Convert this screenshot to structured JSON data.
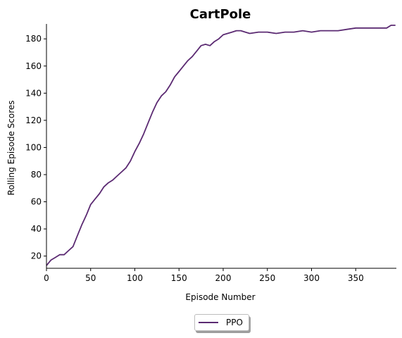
{
  "chart_data": {
    "type": "line",
    "title": "CartPole",
    "xlabel": "Episode Number",
    "ylabel": "Rolling Episode Scores",
    "xlim": [
      0,
      396
    ],
    "ylim": [
      11,
      191
    ],
    "xticks": [
      0,
      50,
      100,
      150,
      200,
      250,
      300,
      350
    ],
    "yticks": [
      20,
      40,
      60,
      80,
      100,
      120,
      140,
      160,
      180
    ],
    "grid": false,
    "legend_position": "below-center",
    "colors": {
      "ppo": "#5b2a72"
    },
    "series": [
      {
        "name": "PPO",
        "x": [
          0,
          5,
          10,
          15,
          20,
          25,
          30,
          35,
          40,
          45,
          50,
          55,
          60,
          65,
          70,
          75,
          80,
          85,
          90,
          95,
          100,
          105,
          110,
          115,
          120,
          125,
          130,
          135,
          140,
          145,
          150,
          155,
          160,
          165,
          170,
          175,
          180,
          185,
          190,
          195,
          200,
          205,
          210,
          215,
          220,
          225,
          230,
          240,
          250,
          260,
          270,
          280,
          290,
          300,
          310,
          320,
          330,
          340,
          350,
          360,
          370,
          380,
          385,
          390,
          395
        ],
        "y": [
          13,
          17,
          19,
          21,
          21,
          24,
          27,
          35,
          43,
          50,
          58,
          62,
          66,
          71,
          74,
          76,
          79,
          82,
          85,
          90,
          97,
          103,
          110,
          118,
          126,
          133,
          138,
          141,
          146,
          152,
          156,
          160,
          164,
          167,
          171,
          175,
          176,
          175,
          178,
          180,
          183,
          184,
          185,
          186,
          186,
          185,
          184,
          185,
          185,
          184,
          185,
          185,
          186,
          185,
          186,
          186,
          186,
          187,
          188,
          188,
          188,
          188,
          188,
          190,
          190
        ]
      }
    ]
  }
}
